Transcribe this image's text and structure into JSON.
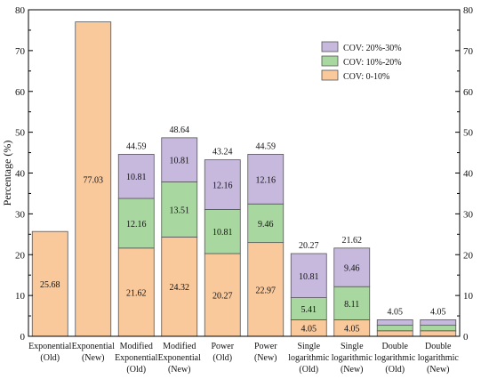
{
  "chart_data": {
    "type": "bar",
    "stacked": true,
    "title": "",
    "ylabel": "Percentage (%)",
    "xlabel": "",
    "ylim": [
      0,
      80
    ],
    "yticks": [
      0,
      10,
      20,
      30,
      40,
      50,
      60,
      70,
      80
    ],
    "grid": false,
    "legend_position": "top-right",
    "categories": [
      [
        "Exponential",
        "(Old)"
      ],
      [
        "Exponential",
        "(New)"
      ],
      [
        "Modified",
        "Exponential",
        "(Old)"
      ],
      [
        "Modified",
        "Exponential",
        "(New)"
      ],
      [
        "Power",
        "(Old)"
      ],
      [
        "Power",
        "(New)"
      ],
      [
        "Single",
        "logarithmic",
        "(Old)"
      ],
      [
        "Single",
        "logarithmic",
        "(New)"
      ],
      [
        "Double",
        "logarithmic",
        "(Old)"
      ],
      [
        "Double",
        "logarithmic",
        "(New)"
      ]
    ],
    "series": [
      {
        "name": "COV: 0-10%",
        "color": "#F9C89B",
        "values": [
          25.68,
          77.03,
          21.62,
          24.32,
          20.27,
          22.97,
          4.05,
          4.05,
          1.35,
          1.35
        ],
        "labels": [
          "25.68",
          "77.03",
          "21.62",
          "24.32",
          "20.27",
          "22.97",
          "4.05",
          "4.05",
          "",
          ""
        ]
      },
      {
        "name": "COV: 10%-20%",
        "color": "#A8D8A0",
        "values": [
          0,
          0,
          12.16,
          13.51,
          10.81,
          9.46,
          5.41,
          8.11,
          1.35,
          1.35
        ],
        "labels": [
          "",
          "",
          "12.16",
          "13.51",
          "10.81",
          "9.46",
          "5.41",
          "8.11",
          "",
          ""
        ]
      },
      {
        "name": "COV: 20%-30%",
        "color": "#C7B8DE",
        "values": [
          0,
          0,
          10.81,
          10.81,
          12.16,
          12.16,
          10.81,
          9.46,
          1.35,
          1.35
        ],
        "labels": [
          "",
          "",
          "10.81",
          "10.81",
          "12.16",
          "12.16",
          "10.81",
          "9.46",
          "",
          ""
        ]
      }
    ],
    "totals": [
      "",
      "",
      "44.59",
      "48.64",
      "43.24",
      "44.59",
      "20.27",
      "21.62",
      "4.05",
      "4.05"
    ]
  }
}
